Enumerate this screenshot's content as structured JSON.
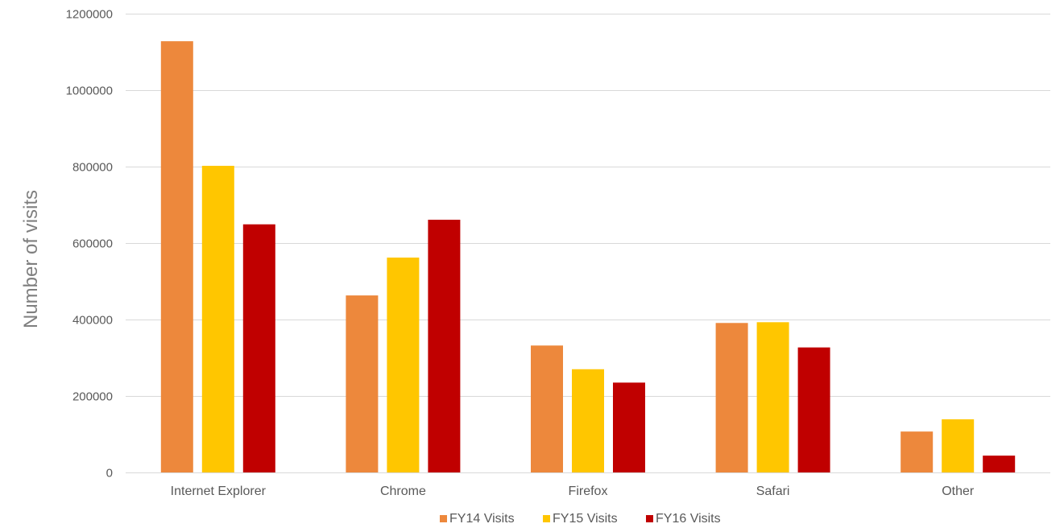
{
  "chart_data": {
    "type": "bar",
    "title": "",
    "xlabel": "",
    "ylabel": "Number of visits",
    "categories": [
      "Internet Explorer",
      "Chrome",
      "Firefox",
      "Safari",
      "Other"
    ],
    "series": [
      {
        "name": "FY14 Visits",
        "color": "#ED883C",
        "values": [
          1128000,
          463000,
          332000,
          391000,
          107000
        ]
      },
      {
        "name": "FY15 Visits",
        "color": "#FFC600",
        "values": [
          802000,
          562000,
          270000,
          393000,
          139000
        ]
      },
      {
        "name": "FY16 Visits",
        "color": "#C00000",
        "values": [
          649000,
          661000,
          235000,
          327000,
          44000
        ]
      }
    ],
    "ylim": [
      0,
      1200000
    ],
    "yticks": [
      "0",
      "200000",
      "400000",
      "600000",
      "800000",
      "1000000",
      "1200000"
    ],
    "ytick_values": [
      0,
      200000,
      400000,
      600000,
      800000,
      1000000,
      1200000
    ],
    "grid": true,
    "legend_position": "bottom"
  }
}
